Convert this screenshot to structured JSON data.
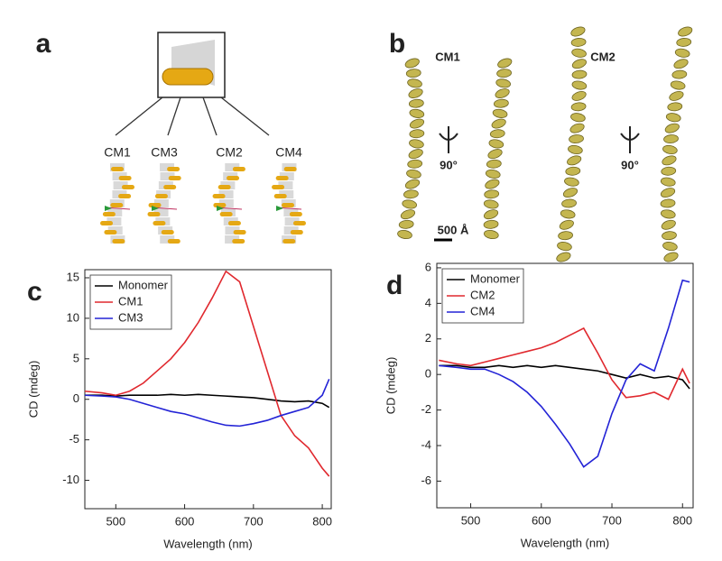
{
  "panel_a": {
    "label": "a",
    "molecules": [
      "CM1",
      "CM3",
      "CM2",
      "CM4"
    ]
  },
  "panel_b": {
    "label": "b",
    "structures": [
      {
        "name": "CM1",
        "rotation": "90°"
      },
      {
        "name": "CM2",
        "rotation": "90°"
      }
    ],
    "scale_bar": "500 Å"
  },
  "chart_data": [
    {
      "type": "line",
      "panel_label": "c",
      "x_label": "Wavelength (nm)",
      "y_label": "CD (mdeg)",
      "xlim": [
        455,
        813
      ],
      "ylim": [
        -13.5,
        16
      ],
      "xticks": [
        500,
        600,
        700,
        800
      ],
      "yticks": [
        -10,
        -5,
        0,
        5,
        10,
        15
      ],
      "x": [
        455,
        480,
        500,
        520,
        540,
        560,
        580,
        600,
        620,
        640,
        660,
        680,
        700,
        720,
        740,
        760,
        780,
        800,
        810
      ],
      "series": [
        {
          "name": "Monomer",
          "color": "#000000",
          "values": [
            0.5,
            0.5,
            0.4,
            0.5,
            0.5,
            0.5,
            0.6,
            0.5,
            0.6,
            0.5,
            0.4,
            0.3,
            0.2,
            0,
            -0.2,
            -0.3,
            -0.2,
            -0.5,
            -1
          ]
        },
        {
          "name": "CM1",
          "color": "#e0282e",
          "values": [
            1,
            0.8,
            0.5,
            1,
            2,
            3.5,
            5,
            7,
            9.5,
            12.5,
            15.8,
            14.5,
            9,
            3.5,
            -2,
            -4.5,
            -6,
            -8.5,
            -9.5
          ]
        },
        {
          "name": "CM3",
          "color": "#2323d6",
          "values": [
            0.5,
            0.4,
            0.3,
            0,
            -0.5,
            -1,
            -1.5,
            -1.8,
            -2.3,
            -2.8,
            -3.2,
            -3.3,
            -3,
            -2.6,
            -2,
            -1.5,
            -1,
            0.5,
            2.5
          ]
        }
      ]
    },
    {
      "type": "line",
      "panel_label": "d",
      "x_label": "Wavelength (nm)",
      "y_label": "CD (mdeg)",
      "xlim": [
        452,
        815
      ],
      "ylim": [
        -7.5,
        6.25
      ],
      "xticks": [
        500,
        600,
        700,
        800
      ],
      "yticks": [
        -6,
        -4,
        -2,
        0,
        2,
        4,
        6
      ],
      "x": [
        455,
        480,
        500,
        520,
        540,
        560,
        580,
        600,
        620,
        640,
        660,
        680,
        700,
        720,
        740,
        760,
        780,
        800,
        810
      ],
      "series": [
        {
          "name": "Monomer",
          "color": "#000000",
          "values": [
            0.5,
            0.5,
            0.4,
            0.4,
            0.5,
            0.4,
            0.5,
            0.4,
            0.5,
            0.4,
            0.3,
            0.2,
            0,
            -0.2,
            0,
            -0.2,
            -0.1,
            -0.3,
            -0.8
          ]
        },
        {
          "name": "CM2",
          "color": "#e0282e",
          "values": [
            0.8,
            0.6,
            0.5,
            0.7,
            0.9,
            1.1,
            1.3,
            1.5,
            1.8,
            2.2,
            2.6,
            1.2,
            -0.3,
            -1.3,
            -1.2,
            -1,
            -1.4,
            0.3,
            -0.5
          ]
        },
        {
          "name": "CM4",
          "color": "#2323d6",
          "values": [
            0.5,
            0.4,
            0.3,
            0.3,
            0,
            -0.4,
            -1,
            -1.8,
            -2.8,
            -3.9,
            -5.2,
            -4.6,
            -2.2,
            -0.3,
            0.6,
            0.2,
            2.6,
            5.3,
            5.2
          ]
        }
      ]
    }
  ]
}
